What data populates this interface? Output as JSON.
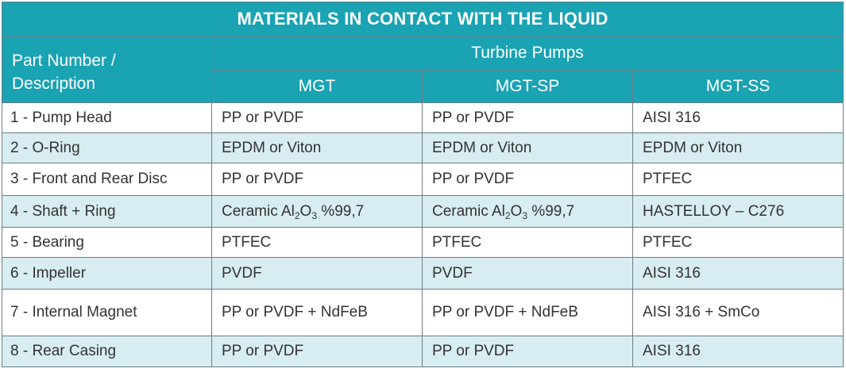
{
  "table": {
    "title": "MATERIALS IN CONTACT WITH THE LIQUID",
    "part_header_line1": "Part Number /",
    "part_header_line2": "Description",
    "group_header": "Turbine Pumps",
    "models": [
      "MGT",
      "MGT-SP",
      "MGT-SS"
    ],
    "rows": [
      {
        "part": "1 - Pump Head",
        "mgt": "PP or PVDF",
        "mgt_sp": "PP or PVDF",
        "mgt_ss": "AISI 316"
      },
      {
        "part": "2 - O-Ring",
        "mgt": "EPDM or Viton",
        "mgt_sp": "EPDM or Viton",
        "mgt_ss": "EPDM or Viton"
      },
      {
        "part": "3 - Front and Rear Disc",
        "mgt": "PP or PVDF",
        "mgt_sp": "PP or PVDF",
        "mgt_ss": "PTFEC"
      },
      {
        "part": "4 - Shaft + Ring",
        "mgt": {
          "pre": "Ceramic Al",
          "s1": "2",
          "mid": "O",
          "s2": "3",
          "post": " %99,7"
        },
        "mgt_sp": {
          "pre": "Ceramic Al",
          "s1": "2",
          "mid": "O",
          "s2": "3",
          "post": " %99,7"
        },
        "mgt_ss": "HASTELLOY – C276"
      },
      {
        "part": "5 - Bearing",
        "mgt": "PTFEC",
        "mgt_sp": "PTFEC",
        "mgt_ss": "PTFEC"
      },
      {
        "part": "6 - Impeller",
        "mgt": "PVDF",
        "mgt_sp": "PVDF",
        "mgt_ss": "AISI 316"
      },
      {
        "part": "7 - Internal Magnet",
        "mgt": "PP or PVDF + NdFeB",
        "mgt_sp": "PP or PVDF + NdFeB",
        "mgt_ss": "AISI 316 + SmCo"
      },
      {
        "part": "8 - Rear Casing",
        "mgt": "PP or PVDF",
        "mgt_sp": "PP or PVDF",
        "mgt_ss": "AISI 316"
      }
    ]
  },
  "colors": {
    "header_bg": "#1aa3b3",
    "stripe_bg": "#d8edf1",
    "border": "#6b7d85",
    "text": "#333333"
  }
}
